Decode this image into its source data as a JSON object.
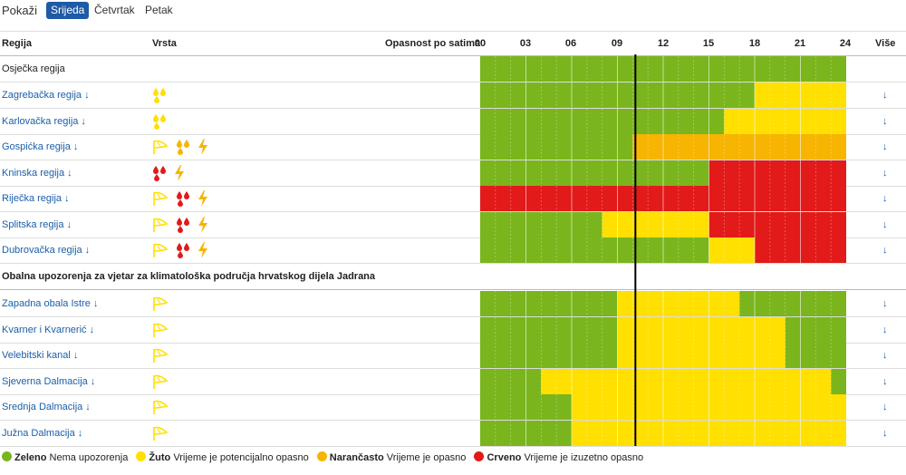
{
  "toolbar": {
    "label": "Pokaži",
    "days": [
      {
        "label": "Srijeda",
        "active": true
      },
      {
        "label": "Četvrtak",
        "active": false
      },
      {
        "label": "Petak",
        "active": false
      }
    ]
  },
  "columns": {
    "region": "Regija",
    "type": "Vrsta",
    "danger": "Opasnost po satima",
    "more": "Više",
    "hours": [
      "00",
      "03",
      "06",
      "09",
      "12",
      "15",
      "18",
      "21",
      "24"
    ]
  },
  "colors": {
    "G": "#7ab51d",
    "Y": "#ffe000",
    "O": "#f7b400",
    "R": "#e21a1a",
    "link": "#1a5fa8",
    "active_tab": "#1e5aa6"
  },
  "current_hour": 10,
  "regions": [
    {
      "name": "Osječka regija",
      "link": false,
      "icons": [],
      "timeline": [
        [
          0,
          24,
          "G"
        ]
      ]
    },
    {
      "name": "Zagrebačka regija",
      "link": true,
      "icons": [
        "rain-icon"
      ],
      "timeline": [
        [
          0,
          18,
          "G"
        ],
        [
          18,
          24,
          "Y"
        ]
      ]
    },
    {
      "name": "Karlovačka regija",
      "link": true,
      "icons": [
        "rain-icon"
      ],
      "timeline": [
        [
          0,
          16,
          "G"
        ],
        [
          16,
          24,
          "Y"
        ]
      ]
    },
    {
      "name": "Gospićka regija",
      "link": true,
      "icons": [
        "wind-icon",
        "rain-icon",
        "lightning-icon"
      ],
      "timeline": [
        [
          0,
          10,
          "G"
        ],
        [
          10,
          24,
          "O"
        ]
      ]
    },
    {
      "name": "Kninska regija",
      "link": true,
      "icons": [
        "rain-icon",
        "lightning-icon"
      ],
      "timeline": [
        [
          0,
          15,
          "G"
        ],
        [
          15,
          24,
          "R"
        ]
      ]
    },
    {
      "name": "Riječka regija",
      "link": true,
      "icons": [
        "wind-icon",
        "rain-icon",
        "lightning-icon"
      ],
      "timeline": [
        [
          0,
          24,
          "R"
        ]
      ]
    },
    {
      "name": "Splitska regija",
      "link": true,
      "icons": [
        "wind-icon",
        "rain-icon",
        "lightning-icon"
      ],
      "timeline": [
        [
          0,
          8,
          "G"
        ],
        [
          8,
          15,
          "Y"
        ],
        [
          15,
          24,
          "R"
        ]
      ]
    },
    {
      "name": "Dubrovačka regija",
      "link": true,
      "icons": [
        "wind-icon",
        "rain-icon",
        "lightning-icon"
      ],
      "timeline": [
        [
          0,
          15,
          "G"
        ],
        [
          15,
          18,
          "Y"
        ],
        [
          18,
          24,
          "R"
        ]
      ]
    }
  ],
  "section_title": "Obalna upozorenja za vjetar za klimatološka područja hrvatskog dijela Jadrana",
  "coastal": [
    {
      "name": "Zapadna obala Istre",
      "icons": [
        "wind-icon"
      ],
      "timeline": [
        [
          0,
          9,
          "G"
        ],
        [
          9,
          17,
          "Y"
        ],
        [
          17,
          24,
          "G"
        ]
      ]
    },
    {
      "name": "Kvarner i Kvarnerić",
      "icons": [
        "wind-icon"
      ],
      "timeline": [
        [
          0,
          9,
          "G"
        ],
        [
          9,
          20,
          "Y"
        ],
        [
          20,
          24,
          "G"
        ]
      ]
    },
    {
      "name": "Velebitski kanal",
      "icons": [
        "wind-icon"
      ],
      "timeline": [
        [
          0,
          9,
          "G"
        ],
        [
          9,
          20,
          "Y"
        ],
        [
          20,
          24,
          "G"
        ]
      ]
    },
    {
      "name": "Sjeverna Dalmacija",
      "icons": [
        "wind-icon"
      ],
      "timeline": [
        [
          0,
          4,
          "G"
        ],
        [
          4,
          23,
          "Y"
        ],
        [
          23,
          24,
          "G"
        ]
      ]
    },
    {
      "name": "Srednja Dalmacija",
      "icons": [
        "wind-icon"
      ],
      "timeline": [
        [
          0,
          6,
          "G"
        ],
        [
          6,
          24,
          "Y"
        ]
      ]
    },
    {
      "name": "Južna Dalmacija",
      "icons": [
        "wind-icon"
      ],
      "timeline": [
        [
          0,
          6,
          "G"
        ],
        [
          6,
          24,
          "Y"
        ]
      ]
    }
  ],
  "legend": [
    {
      "key": "G",
      "bold": "Zeleno",
      "text": "Nema upozorenja"
    },
    {
      "key": "Y",
      "bold": "Žuto",
      "text": "Vrijeme je potencijalno opasno"
    },
    {
      "key": "O",
      "bold": "Narančasto",
      "text": "Vrijeme je opasno"
    },
    {
      "key": "R",
      "bold": "Crveno",
      "text": "Vrijeme je izuzetno opasno"
    }
  ]
}
